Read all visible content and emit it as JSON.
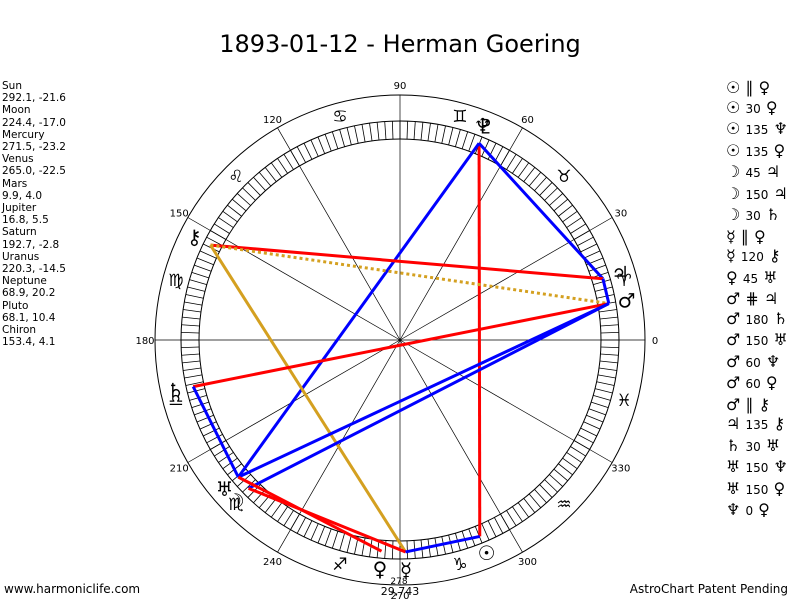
{
  "title": "1893-01-12 - Herman Goering",
  "planets": [
    {
      "name": "Sun",
      "coords": "292.1, -21.6"
    },
    {
      "name": "Moon",
      "coords": "224.4, -17.0"
    },
    {
      "name": "Mercury",
      "coords": "271.5, -23.2"
    },
    {
      "name": "Venus",
      "coords": "265.0, -22.5"
    },
    {
      "name": "Mars",
      "coords": "9.9, 4.0"
    },
    {
      "name": "Jupiter",
      "coords": "16.8, 5.5"
    },
    {
      "name": "Saturn",
      "coords": "192.7, -2.8"
    },
    {
      "name": "Uranus",
      "coords": "220.3, -14.5"
    },
    {
      "name": "Neptune",
      "coords": "68.9, 20.2"
    },
    {
      "name": "Pluto",
      "coords": "68.1, 10.4"
    },
    {
      "name": "Chiron",
      "coords": "153.4, 4.1"
    }
  ],
  "aspects": [
    {
      "p1": "☉",
      "asp": "∥",
      "deg": "",
      "p2": "♀"
    },
    {
      "p1": "☉",
      "asp": "",
      "deg": "30",
      "p2": "♀"
    },
    {
      "p1": "☉",
      "asp": "",
      "deg": "135",
      "p2": "♆"
    },
    {
      "p1": "☉",
      "asp": "",
      "deg": "135",
      "p2": "♀"
    },
    {
      "p1": "☽",
      "asp": "",
      "deg": "45",
      "p2": "♃"
    },
    {
      "p1": "☽",
      "asp": "",
      "deg": "150",
      "p2": "♃"
    },
    {
      "p1": "☽",
      "asp": "",
      "deg": "30",
      "p2": "♄"
    },
    {
      "p1": "☿",
      "asp": "∥",
      "deg": "",
      "p2": "♀"
    },
    {
      "p1": "☿",
      "asp": "",
      "deg": "120",
      "p2": "⚷"
    },
    {
      "p1": "♀",
      "asp": "",
      "deg": "45",
      "p2": "♅"
    },
    {
      "p1": "♂",
      "asp": "⋕",
      "deg": "",
      "p2": "♃"
    },
    {
      "p1": "♂",
      "asp": "",
      "deg": "180",
      "p2": "♄"
    },
    {
      "p1": "♂",
      "asp": "",
      "deg": "150",
      "p2": "♅"
    },
    {
      "p1": "♂",
      "asp": "",
      "deg": "60",
      "p2": "♆"
    },
    {
      "p1": "♂",
      "asp": "",
      "deg": "60",
      "p2": "♀"
    },
    {
      "p1": "♂",
      "asp": "∥",
      "deg": "",
      "p2": "⚷"
    },
    {
      "p1": "♃",
      "asp": "",
      "deg": "135",
      "p2": "⚷"
    },
    {
      "p1": "♄",
      "asp": "",
      "deg": "30",
      "p2": "♅"
    },
    {
      "p1": "♅",
      "asp": "",
      "deg": "150",
      "p2": "♆"
    },
    {
      "p1": "♅",
      "asp": "",
      "deg": "150",
      "p2": "♀"
    },
    {
      "p1": "♆",
      "asp": "",
      "deg": "0",
      "p2": "♀"
    }
  ],
  "footer_left": "www.harmoniclife.com",
  "footer_right": "AstroChart Patent Pending",
  "chart_data": {
    "type": "radial-astrology-wheel",
    "degree_labels": [
      "0",
      "30",
      "60",
      "90",
      "120",
      "150",
      "180",
      "210",
      "240",
      "270",
      "300",
      "330"
    ],
    "zodiac_glyphs": [
      "♈",
      "♉",
      "♊",
      "♋",
      "♌",
      "♍",
      "♎",
      "♏",
      "♐",
      "♑",
      "♒",
      "♓"
    ],
    "bodies": [
      {
        "name": "Sun",
        "glyph": "☉",
        "lon": 292.1
      },
      {
        "name": "Moon",
        "glyph": "☽",
        "lon": 224.4
      },
      {
        "name": "Mercury",
        "glyph": "☿",
        "lon": 271.5
      },
      {
        "name": "Venus",
        "glyph": "♀",
        "lon": 265.0
      },
      {
        "name": "Mars",
        "glyph": "♂",
        "lon": 9.9
      },
      {
        "name": "Jupiter",
        "glyph": "♃",
        "lon": 16.8
      },
      {
        "name": "Saturn",
        "glyph": "♄",
        "lon": 192.7
      },
      {
        "name": "Uranus",
        "glyph": "♅",
        "lon": 220.3
      },
      {
        "name": "Neptune",
        "glyph": "♆",
        "lon": 68.9
      },
      {
        "name": "Pluto",
        "glyph": "♇",
        "lon": 68.1
      },
      {
        "name": "Chiron",
        "glyph": "⚷",
        "lon": 153.4
      }
    ],
    "cusp_labels": [
      "29,743",
      "278"
    ],
    "aspect_lines": [
      {
        "a": "Pluto",
        "b": "Sun",
        "color": "#ff0000",
        "style": "solid"
      },
      {
        "a": "Pluto",
        "b": "Jupiter",
        "color": "#0000ff",
        "style": "solid"
      },
      {
        "a": "Pluto",
        "b": "Uranus",
        "color": "#0000ff",
        "style": "solid"
      },
      {
        "a": "Chiron",
        "b": "Jupiter",
        "color": "#ff0000",
        "style": "solid"
      },
      {
        "a": "Chiron",
        "b": "Mars",
        "color": "#d4a020",
        "style": "dotted"
      },
      {
        "a": "Chiron",
        "b": "Mercury",
        "color": "#d4a020",
        "style": "solid"
      },
      {
        "a": "Saturn",
        "b": "Mars",
        "color": "#ff0000",
        "style": "solid"
      },
      {
        "a": "Saturn",
        "b": "Uranus",
        "color": "#0000ff",
        "style": "solid"
      },
      {
        "a": "Jupiter",
        "b": "Mars",
        "color": "#0000ff",
        "style": "solid"
      },
      {
        "a": "Mars",
        "b": "Uranus",
        "color": "#0000ff",
        "style": "solid"
      },
      {
        "a": "Mars",
        "b": "Moon",
        "color": "#0000ff",
        "style": "solid"
      },
      {
        "a": "Moon",
        "b": "Mercury",
        "color": "#ff0000",
        "style": "solid"
      },
      {
        "a": "Uranus",
        "b": "Venus",
        "color": "#ff0000",
        "style": "solid"
      },
      {
        "a": "Mercury",
        "b": "Sun",
        "color": "#0000ff",
        "style": "solid"
      }
    ]
  }
}
